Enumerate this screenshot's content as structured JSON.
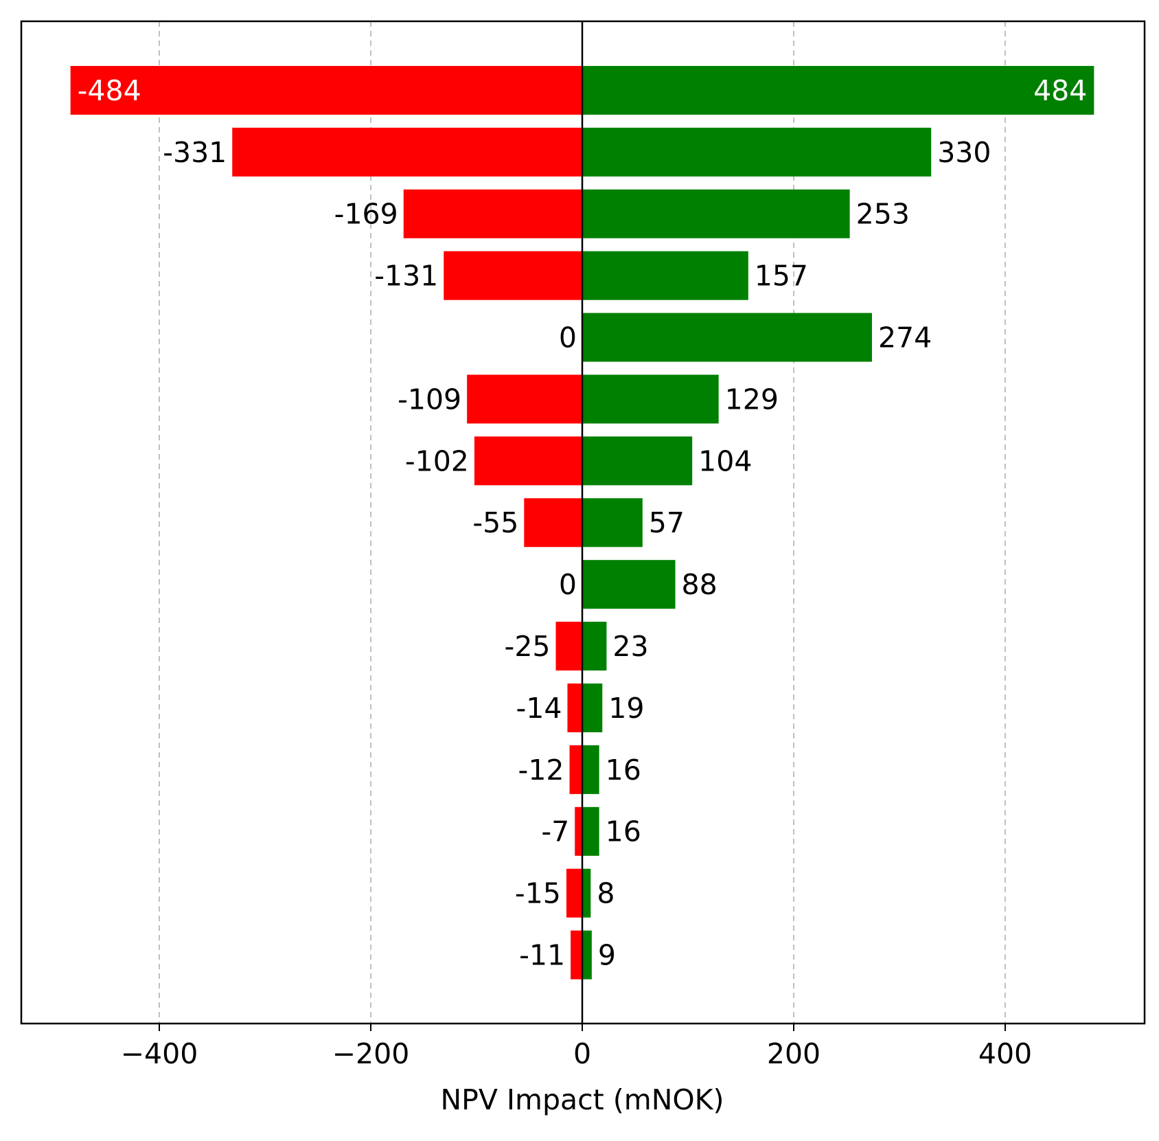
{
  "chart_data": {
    "type": "bar",
    "orientation": "horizontal",
    "subtype": "tornado",
    "title": "",
    "xlabel": "NPV Impact (mNOK)",
    "ylabel": "",
    "xlim": [
      -530,
      530
    ],
    "xticks": [
      -400,
      -200,
      0,
      200,
      400
    ],
    "xtick_labels": [
      "−400",
      "−200",
      "0",
      "200",
      "400"
    ],
    "grid": "x-dashed",
    "colors": {
      "low": "#ff0000",
      "high": "#008000",
      "axis": "#000000",
      "grid": "#c0c0c0"
    },
    "series": [
      {
        "key": "low",
        "values": [
          -484,
          -331,
          -169,
          -131,
          0,
          -109,
          -102,
          -55,
          0,
          -25,
          -14,
          -12,
          -7,
          -15,
          -11
        ]
      },
      {
        "key": "high",
        "values": [
          484,
          330,
          253,
          157,
          274,
          129,
          104,
          57,
          88,
          23,
          19,
          16,
          16,
          8,
          9
        ]
      }
    ],
    "data_labels": {
      "low": [
        "-484",
        "-331",
        "-169",
        "-131",
        "0",
        "-109",
        "-102",
        "-55",
        "0",
        "-25",
        "-14",
        "-12",
        "-7",
        "-15",
        "-11"
      ],
      "high": [
        "484",
        "330",
        "253",
        "157",
        "274",
        "129",
        "104",
        "57",
        "88",
        "23",
        "19",
        "16",
        "16",
        "8",
        "9"
      ]
    }
  }
}
